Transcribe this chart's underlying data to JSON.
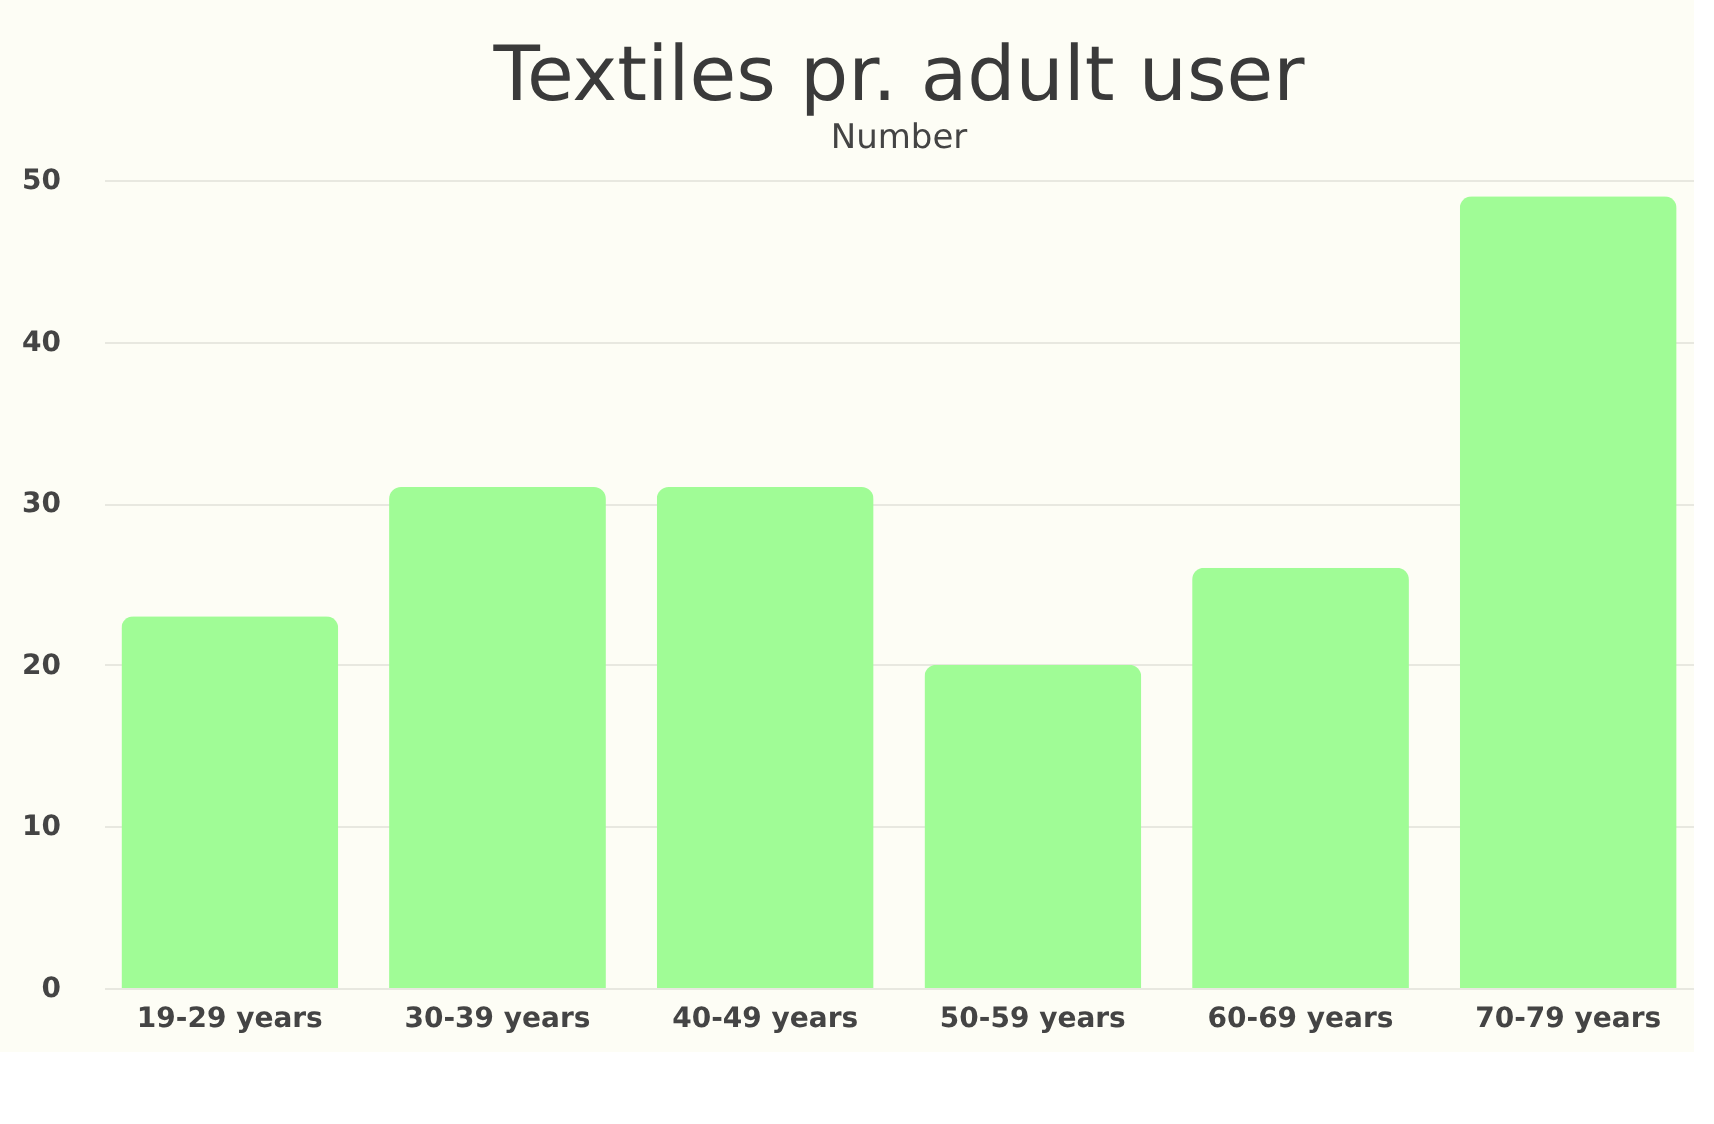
{
  "chart_data": {
    "type": "bar",
    "title": "Textiles pr. adult user",
    "subtitle": "Number",
    "categories": [
      "19-29 years",
      "30-39 years",
      "40-49 years",
      "50-59 years",
      "60-69 years",
      "70-79 years"
    ],
    "values": [
      23,
      31,
      31,
      20,
      26,
      49
    ],
    "color": "#a0fc96",
    "ylim": [
      0,
      50
    ],
    "yticks": [
      0,
      10,
      20,
      30,
      40,
      50
    ],
    "grid": "y"
  }
}
